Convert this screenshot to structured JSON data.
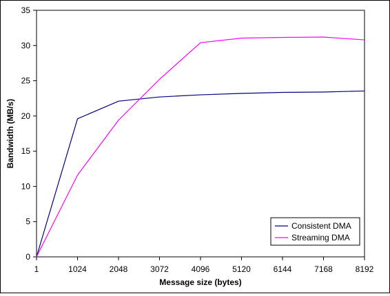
{
  "chart_data": {
    "type": "line",
    "title": "",
    "xlabel": "Message size (bytes)",
    "ylabel": "Bandwidth (MB/s)",
    "categories": [
      "1",
      "1024",
      "2048",
      "3072",
      "4096",
      "5120",
      "6144",
      "7168",
      "8192"
    ],
    "ylim": [
      0,
      35
    ],
    "yticks": [
      0,
      5,
      10,
      15,
      20,
      25,
      30,
      35
    ],
    "grid": false,
    "legend_position": "bottom-right",
    "series": [
      {
        "name": "Consistent DMA",
        "color": "#000080",
        "values": [
          0,
          19.6,
          22.1,
          22.7,
          23.0,
          23.2,
          23.35,
          23.4,
          23.55
        ]
      },
      {
        "name": "Streaming DMA",
        "color": "#ff00ff",
        "values": [
          0,
          11.6,
          19.4,
          25.2,
          30.4,
          31.05,
          31.15,
          31.2,
          30.8
        ]
      }
    ]
  }
}
